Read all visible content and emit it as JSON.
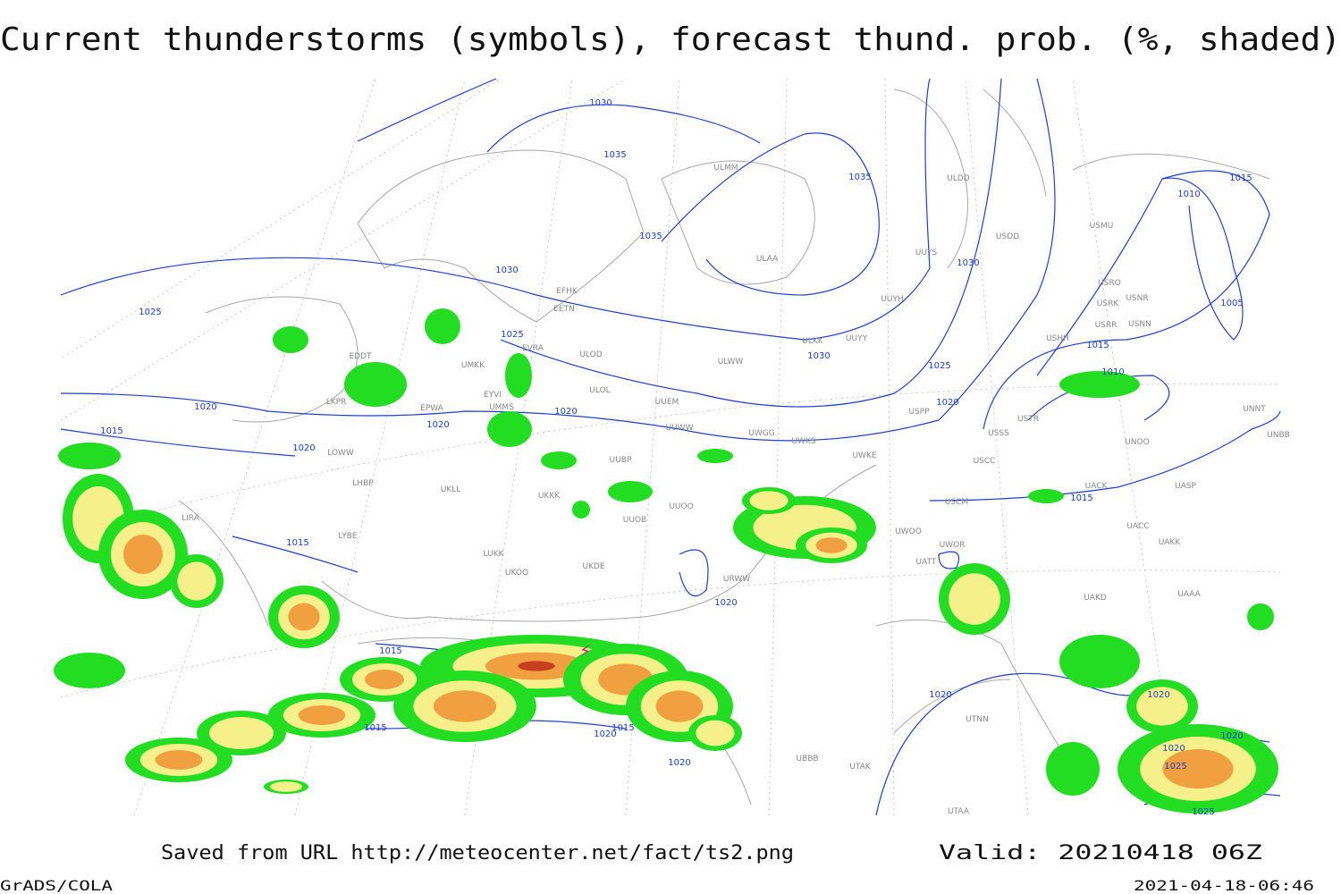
{
  "header": {
    "title": "Current thunderstorms (symbols), forecast thund. prob. (%, shaded)"
  },
  "map": {
    "isobar_labels": [
      "1030",
      "1035",
      "1035",
      "1035",
      "1030",
      "1030",
      "1025",
      "1025",
      "1030",
      "1025",
      "1015",
      "1010",
      "1015",
      "1005",
      "1010",
      "1020",
      "1020",
      "1020",
      "1020",
      "1015",
      "1020",
      "1015",
      "1015",
      "1020",
      "1015",
      "1020",
      "1015",
      "1020",
      "1015",
      "1020",
      "1020",
      "1020",
      "1020",
      "1025",
      "1025"
    ],
    "stations": [
      "ULMM",
      "ULDD",
      "UUYS",
      "ULAA",
      "USDD",
      "USMU",
      "UUYH",
      "USRO",
      "USRK",
      "USNR",
      "USRR",
      "USNN",
      "USHH",
      "EFHK",
      "EETN",
      "EVRA",
      "ULOD",
      "ULKK",
      "UUYY",
      "ULWW",
      "EDDT",
      "UMKK",
      "ULOL",
      "EYVI",
      "UUEM",
      "LKPR",
      "EPWA",
      "UMMS",
      "USPP",
      "USTR",
      "USSS",
      "UNOO",
      "UNNT",
      "UNBB",
      "UUWW",
      "UWGG",
      "UWKS",
      "UWKE",
      "UUBP",
      "LOWW",
      "LHBP",
      "UKLL",
      "UKKK",
      "UUOO",
      "UUOB",
      "LIRA",
      "LYBE",
      "UKOO",
      "LUKK",
      "UKDE",
      "URWW",
      "UWOO",
      "UWOR",
      "UATT",
      "UACC",
      "UAKK",
      "UASP",
      "USCM",
      "USCC",
      "UACK",
      "UAKD",
      "UAAA",
      "UTNN",
      "UBBB",
      "UTAK",
      "UTAA"
    ]
  },
  "footer": {
    "source": "Saved from URL http://meteocenter.net/fact/ts2.png",
    "valid": "Valid: 20210418 06Z",
    "software": "GrADS/COLA",
    "timestamp": "2021-04-18-06:46"
  }
}
